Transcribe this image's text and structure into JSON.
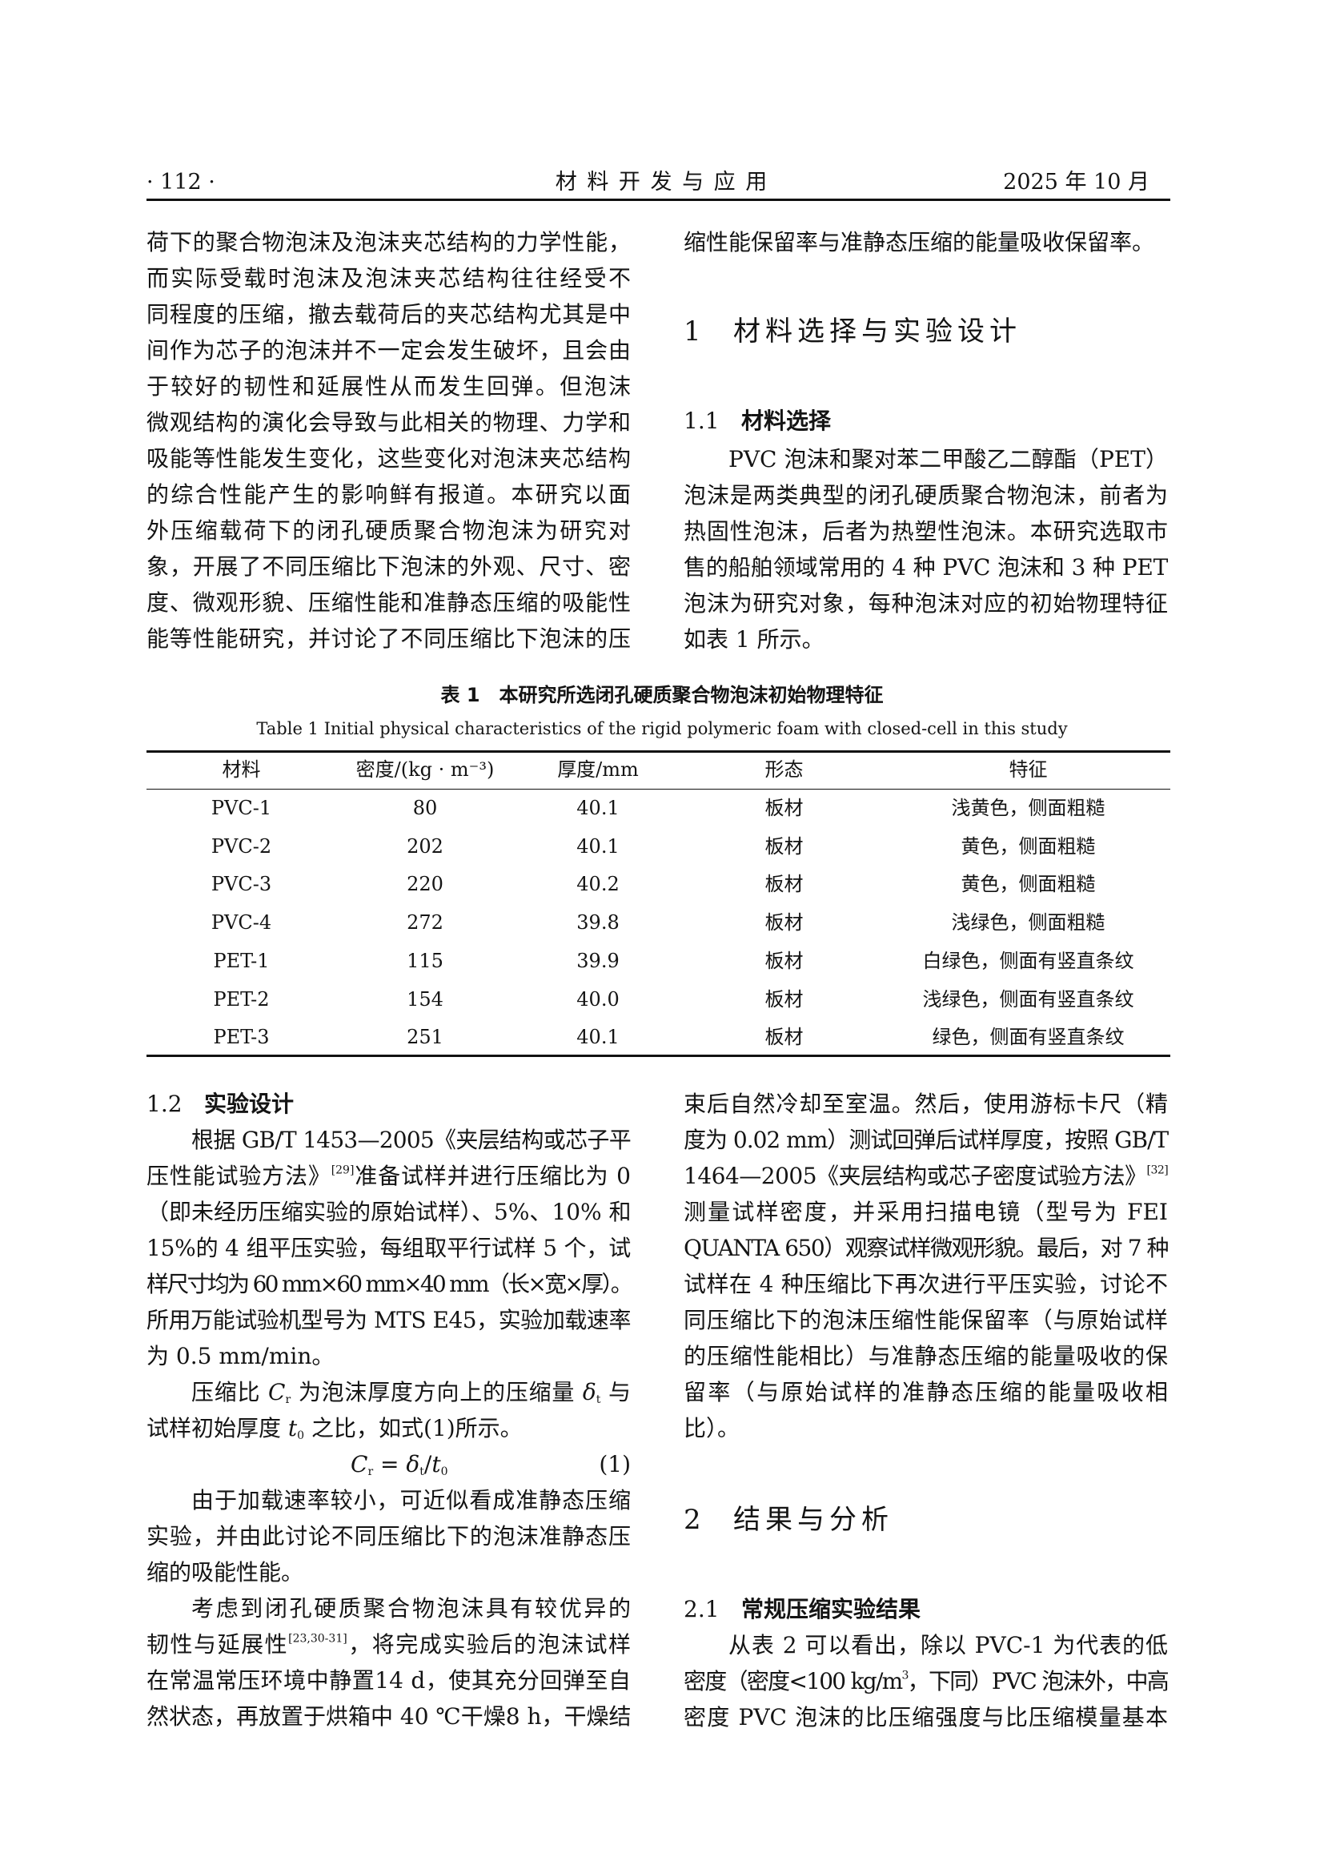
{
  "header": {
    "page_number": "· 112 ·",
    "journal": "材 料 开 发 与 应 用",
    "issue": "2025 年 10 月"
  },
  "left_top": {
    "lines": [
      "荷下的聚合物泡沫及泡沫夹芯结构的力学性能，",
      "而实际受载时泡沫及泡沫夹芯结构往往经受不",
      "同程度的压缩，撤去载荷后的夹芯结构尤其是中",
      "间作为芯子的泡沫并不一定会发生破坏，且会由",
      "于较好的韧性和延展性从而发生回弹。但泡沫",
      "微观结构的演化会导致与此相关的物理、力学和",
      "吸能等性能发生变化，这些变化对泡沫夹芯结构",
      "的综合性能产生的影响鲜有报道。本研究以面",
      "外压缩载荷下的闭孔硬质聚合物泡沫为研究对",
      "象，开展了不同压缩比下泡沫的外观、尺寸、密",
      "度、微观形貌、压缩性能和准静态压缩的吸能性",
      "能等性能研究，并讨论了不同压缩比下泡沫的压"
    ]
  },
  "right_top": {
    "first_line": "缩性能保留率与准静态压缩的能量吸收保留率。",
    "section1": {
      "number": "1",
      "title": "材料选择与实验设计"
    },
    "sub11": {
      "number": "1.1",
      "title": "材料选择"
    },
    "lines": [
      "PVC 泡沫和聚对苯二甲酸乙二醇酯（PET）",
      "泡沫是两类典型的闭孔硬质聚合物泡沫，前者为",
      "热固性泡沫，后者为热塑性泡沫。本研究选取市",
      "售的船舶领域常用的 4 种 PVC 泡沫和 3 种 PET",
      "泡沫为研究对象，每种泡沫对应的初始物理特征",
      "如表 1 所示。"
    ]
  },
  "table": {
    "caption_cn": "表 1　本研究所选闭孔硬质聚合物泡沫初始物理特征",
    "caption_en": "Table 1   Initial physical characteristics of the rigid polymeric foam with closed-cell in this study",
    "headers": [
      "材料",
      "密度/(kg · m⁻³)",
      "厚度/mm",
      "形态",
      "特征"
    ],
    "rows": [
      [
        "PVC-1",
        "80",
        "40.1",
        "板材",
        "浅黄色，侧面粗糙"
      ],
      [
        "PVC-2",
        "202",
        "40.1",
        "板材",
        "黄色，侧面粗糙"
      ],
      [
        "PVC-3",
        "220",
        "40.2",
        "板材",
        "黄色，侧面粗糙"
      ],
      [
        "PVC-4",
        "272",
        "39.8",
        "板材",
        "浅绿色，侧面粗糙"
      ],
      [
        "PET-1",
        "115",
        "39.9",
        "板材",
        "白绿色，侧面有竖直条纹"
      ],
      [
        "PET-2",
        "154",
        "40.0",
        "板材",
        "浅绿色，侧面有竖直条纹"
      ],
      [
        "PET-3",
        "251",
        "40.1",
        "板材",
        "绿色，侧面有竖直条纹"
      ]
    ]
  },
  "left_bottom": {
    "sub12": {
      "number": "1.2",
      "title": "实验设计"
    },
    "lines": [
      [
        "根据 GB/T 1453—2005《夹层结构或芯子平"
      ],
      [
        "压性能试验方法》",
        {
          "sup": "[29]"
        },
        "准备试样并进行压缩比为 0"
      ],
      [
        "（即未经历压缩实验的原始试样）、5%、10% 和"
      ],
      [
        "15%的 4 组平压实验，每组取平行试样 5 个，试"
      ],
      [
        "样尺寸均为 60 mm×60 mm×40 mm（长×宽×厚）。"
      ],
      [
        "所用万能试验机型号为 MTS E45，实验加载速率"
      ],
      [
        "为 0.5 mm/min。"
      ],
      [
        "压缩比 ",
        {
          "i": "C"
        },
        {
          "sub": "r"
        },
        " 为泡沫厚度方向上的压缩量 ",
        {
          "i": "δ"
        },
        {
          "sub": "t"
        },
        " 与"
      ],
      [
        "试样初始厚度 ",
        {
          "i": "t"
        },
        {
          "sub": "0"
        },
        " 之比，如式(1)所示。"
      ],
      [],
      [
        "由于加载速率较小，可近似看成准静态压缩"
      ],
      [
        "实验，并由此讨论不同压缩比下的泡沫准静态压"
      ],
      [
        "缩的吸能性能。"
      ],
      [
        "考虑到闭孔硬质聚合物泡沫具有较优异的"
      ],
      [
        "韧性与延展性",
        {
          "sup": "[23,30-31]"
        },
        "，将完成实验后的泡沫试样"
      ],
      [
        "在常温常压环境中静置14 d，使其充分回弹至自"
      ],
      [
        "然状态，再放置于烘箱中 40 ℃干燥8 h，干燥结"
      ]
    ],
    "formula": {
      "lhs": "C",
      "lhs_sub": "r",
      "rhs_a": "δ",
      "rhs_a_sub": "t",
      "rhs_b": "t",
      "rhs_b_sub": "0",
      "number": "(1)"
    }
  },
  "right_bottom": {
    "lines": [
      [
        "束后自然冷却至室温。然后，使用游标卡尺（精"
      ],
      [
        "度为 0.02 mm）测试回弹后试样厚度，按照 GB/T"
      ],
      [
        "1464—2005《夹层结构或芯子密度试验方法》",
        {
          "sup": "[32]"
        }
      ],
      [
        "测量试样密度，并采用扫描电镜（型号为 FEI"
      ],
      [
        "QUANTA 650）观察试样微观形貌。最后，对 7 种"
      ],
      [
        "试样在 4 种压缩比下再次进行平压实验，讨论不"
      ],
      [
        "同压缩比下的泡沫压缩性能保留率（与原始试样"
      ],
      [
        "的压缩性能相比）与准静态压缩的能量吸收的保"
      ],
      [
        "留率（与原始试样的准静态压缩的能量吸收相"
      ],
      [
        "比）。"
      ]
    ],
    "section2": {
      "number": "2",
      "title": "结果与分析"
    },
    "sub21": {
      "number": "2.1",
      "title": "常规压缩实验结果"
    },
    "lines2": [
      [
        "从表 2 可以看出，除以 PVC-1 为代表的低"
      ],
      [
        "密度（密度<100 kg/m",
        {
          "sup": "3"
        },
        "，下同）PVC 泡沫外，中高"
      ],
      [
        "密度 PVC 泡沫的比压缩强度与比压缩模量基本"
      ]
    ]
  }
}
